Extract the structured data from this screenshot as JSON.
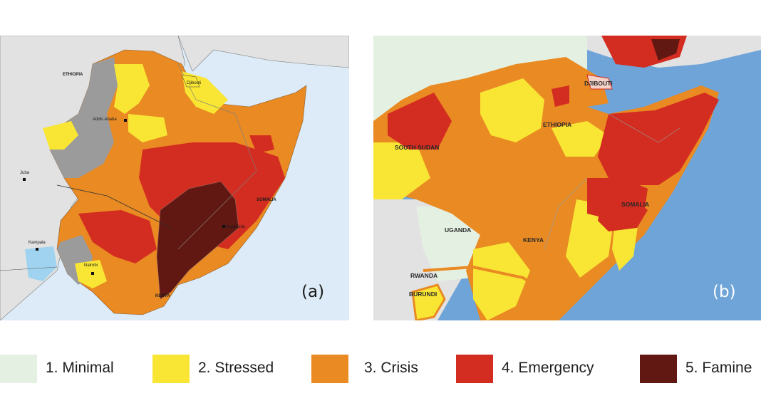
{
  "panels": {
    "a": {
      "label": "(a)",
      "places": {
        "ethiopia": "ETHIOPIA",
        "djibouti": "Djibouti",
        "addis": "Addis Ababa",
        "juba": "Juba",
        "kampala": "Kampala",
        "nairobi": "Nairobi",
        "kenya": "KENYA",
        "somalia": "SOMALIA",
        "mogadishu": "Mogadishu"
      }
    },
    "b": {
      "label": "(b)",
      "places": {
        "djibouti": "DJIBOUTI",
        "ethiopia": "ETHIOPIA",
        "south_sudan": "SOUTH SUDAN",
        "somalia": "SOMALIA",
        "uganda": "UGANDA",
        "kenya": "KENYA",
        "rwanda": "RWANDA",
        "burundi": "BURUNDI"
      }
    }
  },
  "legend": [
    {
      "label": "1. Minimal",
      "color": "#e4f0e2"
    },
    {
      "label": "2. Stressed",
      "color": "#f9e634"
    },
    {
      "label": "3. Crisis",
      "color": "#e98a22"
    },
    {
      "label": "4. Emergency",
      "color": "#d32c20"
    },
    {
      "label": "5. Famine",
      "color": "#621812"
    }
  ],
  "colors": {
    "sea_a": "#dcebf7",
    "sea_b": "#6fa4d8",
    "land_outside": "#e2e2e2",
    "no_data": "#9b9b9b"
  }
}
